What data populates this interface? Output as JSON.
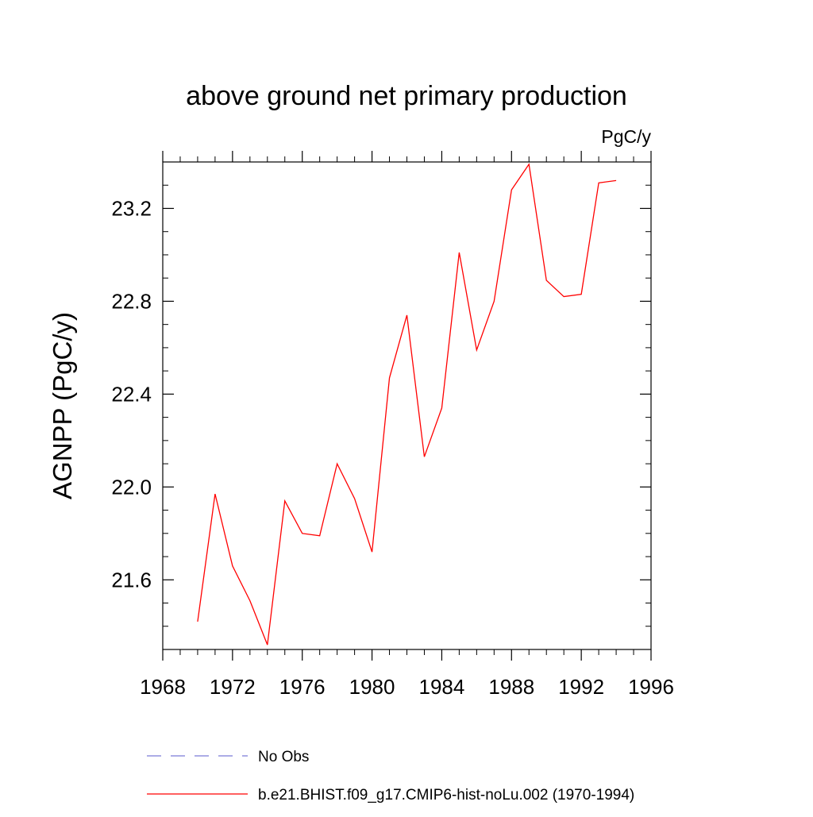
{
  "chart_data": {
    "type": "line",
    "title": "above ground net primary production",
    "units_label": "PgC/y",
    "ylabel": "AGNPP  (PgC/y)",
    "xlabel": "",
    "xlim": [
      1968,
      1996
    ],
    "ylim": [
      21.3,
      23.4
    ],
    "x_ticks": [
      1968,
      1972,
      1976,
      1980,
      1984,
      1988,
      1992,
      1996
    ],
    "y_ticks": [
      21.6,
      22.0,
      22.4,
      22.8,
      23.2
    ],
    "y_tick_labels": [
      "21.6",
      "22.0",
      "22.4",
      "22.8",
      "23.2"
    ],
    "grid": false,
    "legend_position": "bottom",
    "series": [
      {
        "name": "No Obs",
        "color": "#7b7bd6",
        "dash": "dashed",
        "x": [],
        "y": []
      },
      {
        "name": "b.e21.BHIST.f09_g17.CMIP6-hist-noLu.002 (1970-1994)",
        "color": "#ff0000",
        "dash": "solid",
        "x": [
          1970,
          1971,
          1972,
          1973,
          1974,
          1975,
          1976,
          1977,
          1978,
          1979,
          1980,
          1981,
          1982,
          1983,
          1984,
          1985,
          1986,
          1987,
          1988,
          1989,
          1990,
          1991,
          1992,
          1993,
          1994
        ],
        "y": [
          21.42,
          21.97,
          21.66,
          21.51,
          21.32,
          21.94,
          21.8,
          21.79,
          22.1,
          21.95,
          21.72,
          22.47,
          22.74,
          22.13,
          22.34,
          23.01,
          22.59,
          22.8,
          23.28,
          23.39,
          22.89,
          22.82,
          22.83,
          23.31,
          23.32
        ]
      }
    ]
  }
}
